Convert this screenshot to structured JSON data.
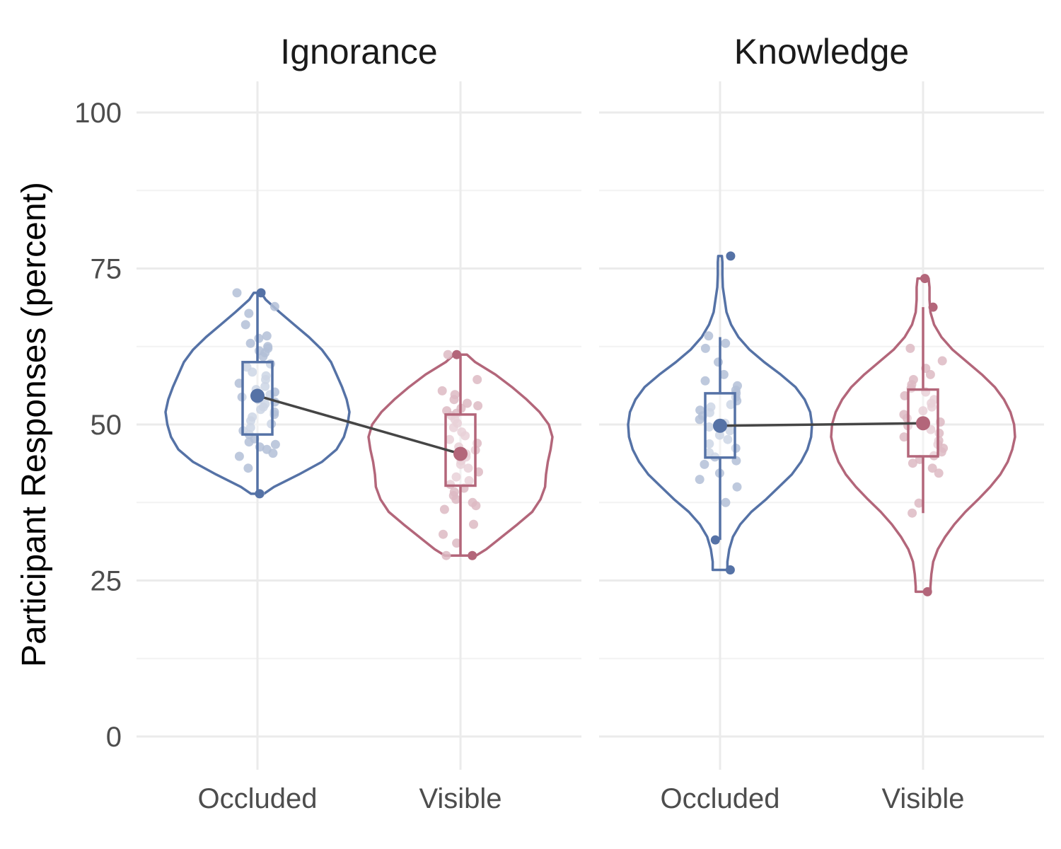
{
  "chart_data": {
    "type": "violin",
    "ylabel": "Participant Responses (percent)",
    "xlabel": "",
    "ylim": [
      0,
      100
    ],
    "yticks": [
      0,
      25,
      50,
      75,
      100
    ],
    "colors": {
      "Occluded": "#5572a6",
      "Visible": "#b3667a"
    },
    "panels": [
      {
        "title": "Ignorance",
        "categories": [
          "Occluded",
          "Visible"
        ],
        "groups": [
          {
            "name": "Occluded",
            "range": [
              38.9,
              71.1
            ],
            "box": {
              "q1": 48.4,
              "median": 55.0,
              "q3": 60.0,
              "whisker_low": 38.9,
              "whisker_high": 71.1
            },
            "mean": 54.6,
            "density": [
              [
                38.9,
                0.07
              ],
              [
                40,
                0.18
              ],
              [
                42,
                0.45
              ],
              [
                44,
                0.7
              ],
              [
                46,
                0.86
              ],
              [
                48,
                0.94
              ],
              [
                50,
                0.98
              ],
              [
                52,
                1.0
              ],
              [
                54,
                0.97
              ],
              [
                56,
                0.92
              ],
              [
                58,
                0.86
              ],
              [
                60,
                0.8
              ],
              [
                62,
                0.7
              ],
              [
                64,
                0.56
              ],
              [
                66,
                0.4
              ],
              [
                68,
                0.24
              ],
              [
                70,
                0.09
              ],
              [
                71.1,
                0.04
              ]
            ],
            "points": [
              71.1,
              68.9,
              67.8,
              66.0,
              64.2,
              63.8,
              63.0,
              62.5,
              62.2,
              61.8,
              61.5,
              60.9,
              59.7,
              59.2,
              58.4,
              57.8,
              57.2,
              56.6,
              56.1,
              55.6,
              55.2,
              54.8,
              54.4,
              54.0,
              53.6,
              53.3,
              52.8,
              52.4,
              52.0,
              51.6,
              51.2,
              50.6,
              50.1,
              49.5,
              49.0,
              48.4,
              47.7,
              47.2,
              46.8,
              46.4,
              46.0,
              45.4,
              44.9,
              43.0,
              38.9
            ],
            "outliers": [
              71.1,
              38.9
            ]
          },
          {
            "name": "Visible",
            "range": [
              29.0,
              61.2
            ],
            "box": {
              "q1": 40.2,
              "median": 46.0,
              "q3": 51.6,
              "whisker_low": 29.0,
              "whisker_high": 61.2
            },
            "mean": 45.3,
            "density": [
              [
                29.0,
                0.17
              ],
              [
                30,
                0.28
              ],
              [
                32,
                0.45
              ],
              [
                34,
                0.62
              ],
              [
                36,
                0.78
              ],
              [
                38,
                0.87
              ],
              [
                40,
                0.92
              ],
              [
                42,
                0.93
              ],
              [
                44,
                0.95
              ],
              [
                46,
                0.98
              ],
              [
                48,
                1.0
              ],
              [
                50,
                0.96
              ],
              [
                52,
                0.86
              ],
              [
                54,
                0.72
              ],
              [
                56,
                0.56
              ],
              [
                58,
                0.38
              ],
              [
                60,
                0.16
              ],
              [
                61.2,
                0.07
              ]
            ],
            "points": [
              61.2,
              57.2,
              55.4,
              54.8,
              54.0,
              53.4,
              53.0,
              52.6,
              52.2,
              51.8,
              51.4,
              50.8,
              50.2,
              49.5,
              48.8,
              48.2,
              47.6,
              47.0,
              46.4,
              45.9,
              45.3,
              44.8,
              44.2,
              43.6,
              43.0,
              42.4,
              41.6,
              41.0,
              40.4,
              39.8,
              39.2,
              38.6,
              38.0,
              37.5,
              37.0,
              36.4,
              34.0,
              32.4,
              31.0,
              29.0
            ],
            "outliers": [
              61.2,
              29.0
            ]
          }
        ]
      },
      {
        "title": "Knowledge",
        "categories": [
          "Occluded",
          "Visible"
        ],
        "groups": [
          {
            "name": "Occluded",
            "range": [
              26.7,
              77.0
            ],
            "box": {
              "q1": 44.7,
              "median": 52.1,
              "q3": 55.0,
              "whisker_low": 31.5,
              "whisker_high": 64.0
            },
            "mean": 49.8,
            "density": [
              [
                26.7,
                0.08
              ],
              [
                28,
                0.08
              ],
              [
                30,
                0.1
              ],
              [
                32,
                0.14
              ],
              [
                34,
                0.22
              ],
              [
                36,
                0.34
              ],
              [
                38,
                0.5
              ],
              [
                40,
                0.64
              ],
              [
                42,
                0.78
              ],
              [
                44,
                0.88
              ],
              [
                46,
                0.95
              ],
              [
                48,
                0.99
              ],
              [
                50,
                1.0
              ],
              [
                52,
                0.98
              ],
              [
                54,
                0.92
              ],
              [
                56,
                0.82
              ],
              [
                58,
                0.66
              ],
              [
                60,
                0.48
              ],
              [
                62,
                0.32
              ],
              [
                64,
                0.2
              ],
              [
                66,
                0.12
              ],
              [
                68,
                0.07
              ],
              [
                70,
                0.05
              ],
              [
                72,
                0.03
              ],
              [
                74,
                0.025
              ],
              [
                76,
                0.025
              ],
              [
                77,
                0.02
              ]
            ],
            "points": [
              64.2,
              63.0,
              62.2,
              60.0,
              58.0,
              57.0,
              56.2,
              55.5,
              55.0,
              54.4,
              53.8,
              53.2,
              52.8,
              52.3,
              51.9,
              51.4,
              50.8,
              50.2,
              49.6,
              49.0,
              48.3,
              47.6,
              46.9,
              46.2,
              45.5,
              44.8,
              44.2,
              43.6,
              42.2,
              41.2,
              40.0,
              37.5
            ],
            "outliers": [
              77.0,
              31.5,
              26.7
            ]
          },
          {
            "name": "Visible",
            "range": [
              23.2,
              73.4
            ],
            "box": {
              "q1": 44.9,
              "median": 49.4,
              "q3": 55.6,
              "whisker_low": 35.8,
              "whisker_high": 68.8
            },
            "mean": 50.2,
            "density": [
              [
                23.2,
                0.08
              ],
              [
                24,
                0.08
              ],
              [
                26,
                0.09
              ],
              [
                28,
                0.11
              ],
              [
                30,
                0.16
              ],
              [
                32,
                0.24
              ],
              [
                34,
                0.34
              ],
              [
                36,
                0.46
              ],
              [
                38,
                0.6
              ],
              [
                40,
                0.73
              ],
              [
                42,
                0.84
              ],
              [
                44,
                0.92
              ],
              [
                46,
                0.97
              ],
              [
                48,
                1.0
              ],
              [
                50,
                0.99
              ],
              [
                52,
                0.95
              ],
              [
                54,
                0.88
              ],
              [
                56,
                0.78
              ],
              [
                58,
                0.64
              ],
              [
                60,
                0.48
              ],
              [
                62,
                0.32
              ],
              [
                64,
                0.2
              ],
              [
                66,
                0.12
              ],
              [
                68,
                0.08
              ],
              [
                70,
                0.07
              ],
              [
                72,
                0.07
              ],
              [
                73.4,
                0.06
              ]
            ],
            "points": [
              62.2,
              60.2,
              59.0,
              58.0,
              57.2,
              56.4,
              55.8,
              55.2,
              54.6,
              54.0,
              53.4,
              52.8,
              52.2,
              51.6,
              51.0,
              50.4,
              49.8,
              49.2,
              48.6,
              48.0,
              47.4,
              46.8,
              46.2,
              45.6,
              45.0,
              44.4,
              43.8,
              43.0,
              42.2,
              37.4,
              35.8
            ],
            "outliers": [
              73.4,
              68.8,
              23.2
            ]
          }
        ]
      }
    ]
  }
}
